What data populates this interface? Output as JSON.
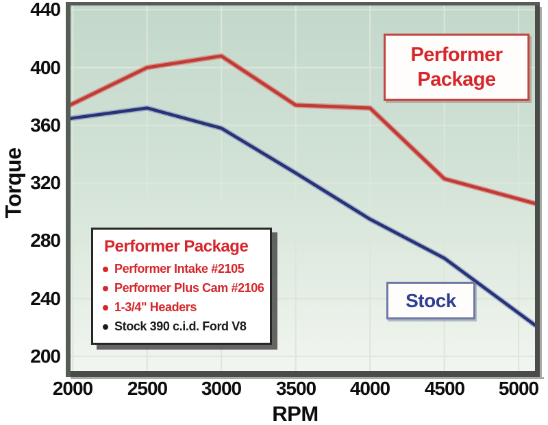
{
  "chart_data": {
    "type": "line",
    "title": "",
    "xlabel": "RPM",
    "ylabel": "Torque",
    "x": [
      2000,
      2500,
      3000,
      3500,
      4000,
      4500,
      5000
    ],
    "series": [
      {
        "name": "Performer Package",
        "color": "#c03a36",
        "halo": "rgba(219,92,86,0.55)",
        "values": [
          375,
          400,
          408,
          374,
          372,
          323,
          309
        ]
      },
      {
        "name": "Stock",
        "color": "#283278",
        "halo": "rgba(115,128,180,0.5)",
        "values": [
          365,
          372,
          358,
          327,
          295,
          268,
          230
        ]
      }
    ],
    "xticks": [
      "2000",
      "2500",
      "3000",
      "3500",
      "4000",
      "4500",
      "5000"
    ],
    "yticks": [
      "440",
      "400",
      "360",
      "320",
      "280",
      "240",
      "200"
    ],
    "ytick_values": [
      440,
      400,
      360,
      320,
      280,
      240,
      200
    ],
    "xtick_values": [
      2000,
      2500,
      3000,
      3500,
      4000,
      4500,
      5000
    ],
    "xlim": [
      2000,
      5000
    ],
    "ylim": [
      200,
      440
    ],
    "grid": true,
    "plot_bg_top": "#c2d8ca",
    "plot_bg_bottom": "#f2f6f0",
    "gridline_color": "#dde6da",
    "frame_color": "#4b4b4b",
    "legend_position": "inside-lower-left"
  },
  "annotations": {
    "performer_callout": {
      "line1": "Performer",
      "line2": "Package",
      "color": "#d5262b"
    },
    "stock_callout": {
      "label": "Stock",
      "color": "#2f3d92"
    }
  },
  "legend": {
    "title": "Performer Package",
    "title_color": "#d5262b",
    "items": [
      {
        "label": "Performer Intake #2105",
        "color": "#d5262b"
      },
      {
        "label": "Performer Plus Cam #2106",
        "color": "#d5262b"
      },
      {
        "label": "1-3/4\" Headers",
        "color": "#d5262b"
      },
      {
        "label": "Stock 390 c.i.d. Ford V8",
        "color": "#1a1a1a"
      }
    ]
  }
}
